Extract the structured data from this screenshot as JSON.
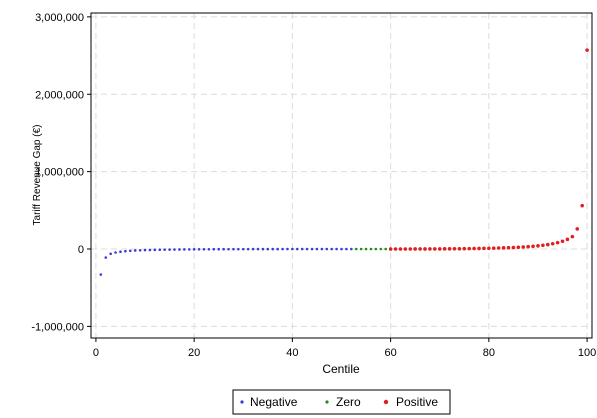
{
  "chart_data": {
    "type": "scatter",
    "xlabel": "Centile",
    "ylabel": "Tariff Revenue Gap (€)",
    "xlim": [
      -1,
      101
    ],
    "ylim": [
      -1150000,
      3050000
    ],
    "x_ticks": [
      0,
      20,
      40,
      60,
      80,
      100
    ],
    "x_tick_labels": [
      "0",
      "20",
      "40",
      "60",
      "80",
      "100"
    ],
    "y_ticks": [
      -1000000,
      0,
      1000000,
      2000000,
      3000000
    ],
    "y_tick_labels": [
      "-1,000,000",
      "0",
      "1,000,000",
      "2,000,000",
      "3,000,000"
    ],
    "grid": true,
    "legend_position": "bottom",
    "series": [
      {
        "name": "Negative",
        "color": "#3b3bd6",
        "x": [
          1,
          2,
          3,
          4,
          5,
          6,
          7,
          8,
          9,
          10,
          11,
          12,
          13,
          14,
          15,
          16,
          17,
          18,
          19,
          20,
          21,
          22,
          23,
          24,
          25,
          26,
          27,
          28,
          29,
          30,
          31,
          32,
          33,
          34,
          35,
          36,
          37,
          38,
          39,
          40,
          41,
          42,
          43,
          44,
          45,
          46,
          47,
          48,
          49,
          50,
          51,
          52
        ],
        "values": [
          -330000,
          -110000,
          -62000,
          -45000,
          -35000,
          -28000,
          -23000,
          -19000,
          -16000,
          -14000,
          -12000,
          -10500,
          -9200,
          -8200,
          -7300,
          -6500,
          -5800,
          -5200,
          -4700,
          -4200,
          -3800,
          -3400,
          -3100,
          -2800,
          -2500,
          -2300,
          -2100,
          -1900,
          -1700,
          -1550,
          -1400,
          -1250,
          -1100,
          -1000,
          -900,
          -800,
          -700,
          -620,
          -550,
          -480,
          -410,
          -350,
          -300,
          -250,
          -200,
          -160,
          -120,
          -90,
          -60,
          -40,
          -20,
          -10
        ]
      },
      {
        "name": "Zero",
        "color": "#1e8c1e",
        "x": [
          53,
          54,
          55,
          56,
          57,
          58,
          59
        ],
        "values": [
          0,
          0,
          0,
          0,
          0,
          0,
          0
        ]
      },
      {
        "name": "Positive",
        "color": "#e02020",
        "x": [
          60,
          61,
          62,
          63,
          64,
          65,
          66,
          67,
          68,
          69,
          70,
          71,
          72,
          73,
          74,
          75,
          76,
          77,
          78,
          79,
          80,
          81,
          82,
          83,
          84,
          85,
          86,
          87,
          88,
          89,
          90,
          91,
          92,
          93,
          94,
          95,
          96,
          97,
          98,
          99,
          100
        ],
        "values": [
          10,
          50,
          100,
          200,
          300,
          450,
          600,
          800,
          1000,
          1300,
          1600,
          2000,
          2400,
          2900,
          3500,
          4200,
          5000,
          6000,
          7200,
          8600,
          10000,
          11500,
          13000,
          15000,
          17000,
          19500,
          22500,
          26000,
          30000,
          35000,
          41000,
          48000,
          57000,
          68000,
          82000,
          100000,
          125000,
          160000,
          260000,
          560000,
          2570000
        ]
      }
    ]
  }
}
